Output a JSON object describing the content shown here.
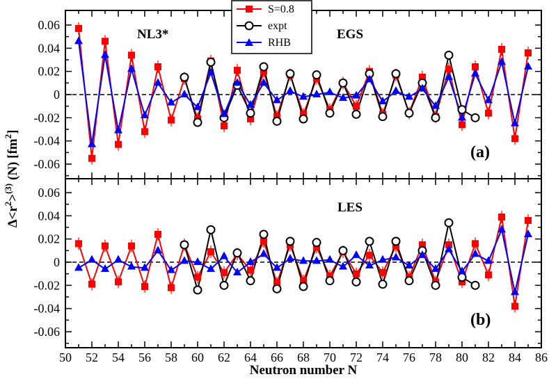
{
  "chart_data": {
    "type": "line",
    "xlabel": "Neutron number  N",
    "ylabel_parts": {
      "delta": "Δ<r",
      "exp2": "2",
      "close": ">",
      "exp3": "(3)",
      "tail": " (N)  [fm",
      "unit_exp": "2",
      "end": "]"
    },
    "xlim": [
      50,
      86
    ],
    "x_ticks": [
      "50",
      "52",
      "54",
      "56",
      "58",
      "60",
      "62",
      "64",
      "66",
      "68",
      "70",
      "72",
      "74",
      "76",
      "78",
      "80",
      "82",
      "84",
      "86"
    ],
    "ylim": [
      -0.07,
      0.065
    ],
    "y_ticks_top": [
      "0.06",
      "0.04",
      "0.02",
      "0",
      "-0.02",
      "-0.04",
      "-0.06"
    ],
    "y_ticks_bottom": [
      "0.06",
      "0.04",
      "0.02",
      "0",
      "-0.02",
      "-0.04",
      "-0.06"
    ],
    "legend": [
      "S=0.8",
      "expt",
      "RHB"
    ],
    "colors": {
      "s08": "#ff0000",
      "expt": "#000000",
      "rhb": "#0000ff"
    },
    "panels": [
      {
        "label": "(a)",
        "annotations": [
          "NL3*",
          "EGS"
        ],
        "series": [
          {
            "name": "S=0.8",
            "x": [
              51,
              52,
              53,
              54,
              55,
              56,
              57,
              58,
              59,
              60,
              61,
              62,
              63,
              64,
              65,
              66,
              67,
              68,
              69,
              70,
              71,
              72,
              73,
              74,
              75,
              76,
              77,
              78,
              79,
              80,
              81,
              82,
              83,
              84,
              85
            ],
            "y": [
              0.057,
              -0.055,
              0.046,
              -0.043,
              0.034,
              -0.032,
              0.024,
              -0.022,
              0.014,
              -0.021,
              0.029,
              -0.027,
              0.021,
              -0.021,
              0.02,
              -0.019,
              0.017,
              -0.017,
              0.014,
              -0.013,
              0.01,
              -0.01,
              0.02,
              -0.017,
              0.017,
              -0.016,
              0.015,
              -0.019,
              0.022,
              -0.026,
              0.024,
              -0.016,
              0.039,
              -0.038,
              0.036
            ]
          },
          {
            "name": "expt",
            "x": [
              59,
              60,
              61,
              62,
              63,
              64,
              65,
              66,
              67,
              68,
              69,
              70,
              71,
              72,
              73,
              74,
              75,
              76,
              77,
              78,
              79,
              80,
              81
            ],
            "y": [
              0.015,
              -0.024,
              0.028,
              -0.02,
              0.008,
              -0.016,
              0.024,
              -0.023,
              0.018,
              -0.021,
              0.017,
              -0.016,
              0.01,
              -0.017,
              0.018,
              -0.019,
              0.018,
              -0.016,
              0.01,
              -0.02,
              0.034,
              -0.013,
              -0.02
            ]
          },
          {
            "name": "RHB",
            "x": [
              51,
              52,
              53,
              54,
              55,
              56,
              57,
              58,
              59,
              60,
              61,
              62,
              63,
              64,
              65,
              66,
              67,
              68,
              69,
              70,
              71,
              72,
              73,
              74,
              75,
              76,
              77,
              78,
              79,
              80,
              81,
              82,
              83,
              84,
              85
            ],
            "y": [
              0.046,
              -0.043,
              0.034,
              -0.031,
              0.022,
              -0.018,
              0.01,
              -0.007,
              0.0,
              -0.011,
              0.019,
              -0.017,
              0.01,
              -0.009,
              0.01,
              -0.005,
              0.003,
              -0.002,
              0.0,
              0.002,
              -0.003,
              -0.001,
              0.013,
              -0.006,
              0.003,
              -0.002,
              0.005,
              -0.01,
              0.015,
              -0.02,
              0.018,
              -0.005,
              0.028,
              -0.025,
              0.024
            ]
          }
        ]
      },
      {
        "label": "(b)",
        "annotations": [
          "LES"
        ],
        "series": [
          {
            "name": "S=0.8",
            "x": [
              51,
              52,
              53,
              54,
              55,
              56,
              57,
              58,
              59,
              60,
              61,
              62,
              63,
              64,
              65,
              66,
              67,
              68,
              69,
              70,
              71,
              72,
              73,
              74,
              75,
              76,
              77,
              78,
              79,
              80,
              81,
              82,
              83,
              84,
              85
            ],
            "y": [
              0.016,
              -0.019,
              0.014,
              -0.017,
              0.014,
              -0.021,
              0.024,
              -0.022,
              0.015,
              -0.013,
              0.009,
              -0.009,
              0.007,
              -0.007,
              0.018,
              -0.018,
              0.015,
              -0.016,
              0.013,
              -0.012,
              0.009,
              -0.01,
              0.006,
              -0.009,
              0.014,
              -0.013,
              0.015,
              -0.017,
              0.015,
              -0.017,
              0.016,
              -0.011,
              0.039,
              -0.038,
              0.036
            ]
          },
          {
            "name": "expt",
            "x": [
              59,
              60,
              61,
              62,
              63,
              64,
              65,
              66,
              67,
              68,
              69,
              70,
              71,
              72,
              73,
              74,
              75,
              76,
              77,
              78,
              79,
              80,
              81
            ],
            "y": [
              0.015,
              -0.024,
              0.028,
              -0.02,
              0.008,
              -0.016,
              0.024,
              -0.023,
              0.018,
              -0.021,
              0.017,
              -0.016,
              0.01,
              -0.017,
              0.018,
              -0.019,
              0.018,
              -0.016,
              0.01,
              -0.02,
              0.034,
              -0.013,
              -0.02
            ]
          },
          {
            "name": "RHB",
            "x": [
              51,
              52,
              53,
              54,
              55,
              56,
              57,
              58,
              59,
              60,
              61,
              62,
              63,
              64,
              65,
              66,
              67,
              68,
              69,
              70,
              71,
              72,
              73,
              74,
              75,
              76,
              77,
              78,
              79,
              80,
              81,
              82,
              83,
              84,
              85
            ],
            "y": [
              -0.005,
              0.002,
              -0.006,
              0.002,
              -0.004,
              -0.005,
              0.01,
              -0.007,
              0.001,
              0.0,
              -0.006,
              0.005,
              -0.009,
              0.0,
              0.007,
              -0.005,
              0.003,
              0.001,
              0.001,
              0.002,
              -0.004,
              0.006,
              -0.003,
              0.002,
              0.004,
              -0.003,
              0.006,
              -0.006,
              0.011,
              -0.008,
              0.007,
              0.001,
              0.028,
              -0.026,
              0.024
            ]
          }
        ]
      }
    ]
  }
}
